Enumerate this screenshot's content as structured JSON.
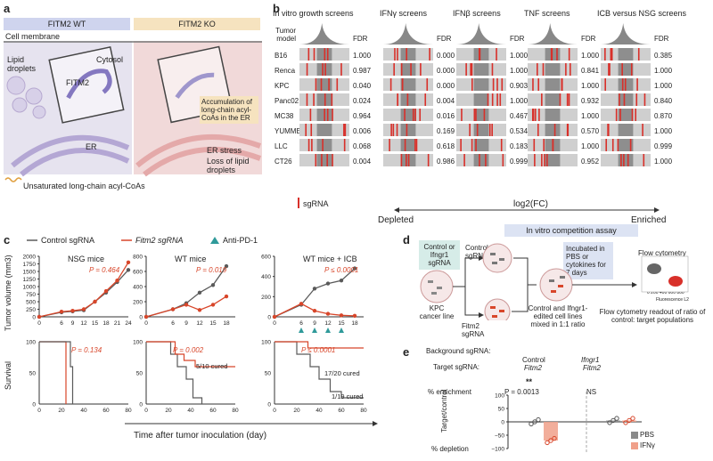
{
  "panel_a": {
    "letter": "a",
    "wt_header": "FITM2 WT",
    "ko_header": "FITM2 KO",
    "cell_membrane": "Cell membrane",
    "lipid_droplets": "Lipid\ndroplets",
    "cytosol": "Cytosol",
    "fitm2": "FITM2",
    "er": "ER",
    "accumulation": "Accumulation of long-chain acyl-CoAs in the ER",
    "er_stress": "ER stress",
    "loss_lipid": "Loss of lipid droplets",
    "legend": "Unsaturated long-chain acyl-CoAs",
    "colors": {
      "wt_bg": "#e6e3ef",
      "ko_bg": "#f1d9d9",
      "wt_header": "#cfd4ee",
      "ko_header": "#f6e3bf"
    }
  },
  "panel_b": {
    "letter": "b",
    "screens": [
      "In vitro growth screens",
      "IFNγ screens",
      "IFNβ screens",
      "TNF screens",
      "ICB versus NSG screens"
    ],
    "tumor_model_label": "Tumor\nmodel",
    "fdr_label": "FDR",
    "models": [
      "B16",
      "Renca",
      "KPC",
      "Panc02",
      "MC38",
      "YUMMER",
      "LLC",
      "CT26"
    ],
    "fdr": [
      [
        "1.000",
        "0.987",
        "0.040",
        "0.024",
        "0.964",
        "0.006",
        "0.068",
        "0.004"
      ],
      [
        "0.000",
        "0.000",
        "0.000",
        "0.004",
        "0.016",
        "0.169",
        "0.618",
        "0.986"
      ],
      [
        "1.000",
        "1.000",
        "0.903",
        "1.000",
        "0.467",
        "0.534",
        "0.183",
        "0.999"
      ],
      [
        "1.000",
        "0.841",
        "1.000",
        "0.932",
        "1.000",
        "0.570",
        "1.000",
        "0.952"
      ],
      [
        "0.385",
        "1.000",
        "1.000",
        "0.840",
        "0.870",
        "1.000",
        "0.999",
        "1.000"
      ]
    ],
    "sgrna_legend": "sgRNA",
    "axis_label": "log2(FC)",
    "depleted": "Depleted",
    "enriched": "Enriched",
    "colors": {
      "sgrna": "#d8302a",
      "strip": "#cfcfcf"
    }
  },
  "panel_c": {
    "letter": "c",
    "legend": {
      "control": "Control sgRNA",
      "fitm2": "Fitm2 sgRNA",
      "anti_pd1": "Anti-PD-1"
    },
    "titles": [
      "NSG mice",
      "WT mice",
      "WT mice + ICB"
    ],
    "growth_ylabel": "Tumor volume (mm3)",
    "survival_ylabel": "Survival",
    "xlabel": "Time after tumor inoculation (day)",
    "p_values": [
      "P = 0.464",
      "P = 0.019",
      "P ≤ 0.0001"
    ],
    "survival_p": [
      "P = 0.134",
      "P = 0.002",
      "P ≤ 0.0001"
    ],
    "cured": [
      "5/10 cured",
      "17/20 cured",
      "1/19 cured"
    ],
    "colors": {
      "control": "#5a5a5a",
      "fitm2": "#d8462a",
      "anti_pd1": "#2f9a9a"
    }
  },
  "panel_d": {
    "letter": "d",
    "title": "In vitro competition assay",
    "control_box": "Control or Ifngr1 sgRNA",
    "control_sgrna": "Control sgRNA",
    "kpc": "KPC cancer line",
    "fitm2_sgrna": "Fitm2 sgRNA",
    "mixed": "Control and Ifngr1-edited cell lines mixed in 1:1 ratio",
    "incubated": "Incubated in PBS or cytokines for 7 days",
    "flow": "Flow cytometry",
    "readout": "Flow cytometry readout of ratio of control: target populations",
    "flow_axes": {
      "y": "Fluorescence L1",
      "x": "Fluorescence L2",
      "ticks": "0 200 400 600 800"
    }
  },
  "panel_e": {
    "letter": "e",
    "background": "Background sgRNA:",
    "target": "Target sgRNA:",
    "group1": [
      "Control",
      "Fitm2"
    ],
    "group2": [
      "Ifngr1",
      "Fitm2"
    ],
    "stars": "**",
    "p": "P = 0.0013",
    "ns": "NS",
    "enrichment": "% enrichment",
    "depletion": "% depletion",
    "ylabel": "Target/control",
    "yticks": [
      "100",
      "50",
      "0",
      "−50",
      "−100"
    ],
    "legend": [
      "PBS",
      "IFNγ"
    ],
    "colors": {
      "pbs": "#8a8a8a",
      "ifng": "#f0a08a"
    }
  },
  "chart_data": [
    {
      "type": "line",
      "title": "NSG mice",
      "x": [
        0,
        6,
        9,
        12,
        15,
        18,
        21,
        24
      ],
      "ylim": [
        0,
        2000
      ],
      "series": [
        {
          "name": "Control sgRNA",
          "values": [
            0,
            150,
            180,
            220,
            500,
            800,
            1150,
            1550
          ]
        },
        {
          "name": "Fitm2 sgRNA",
          "values": [
            0,
            170,
            200,
            250,
            500,
            850,
            1200,
            1800
          ]
        }
      ]
    },
    {
      "type": "line",
      "title": "WT mice",
      "x": [
        0,
        6,
        9,
        12,
        15,
        18
      ],
      "ylim": [
        0,
        800
      ],
      "series": [
        {
          "name": "Control sgRNA",
          "values": [
            0,
            100,
            180,
            320,
            420,
            670
          ]
        },
        {
          "name": "Fitm2 sgRNA",
          "values": [
            0,
            100,
            160,
            90,
            160,
            270
          ]
        }
      ]
    },
    {
      "type": "line",
      "title": "WT mice + ICB",
      "x": [
        0,
        6,
        9,
        12,
        15,
        18
      ],
      "ylim": [
        0,
        600
      ],
      "series": [
        {
          "name": "Control sgRNA",
          "values": [
            0,
            120,
            280,
            330,
            360,
            480
          ]
        },
        {
          "name": "Fitm2 sgRNA",
          "values": [
            0,
            130,
            60,
            30,
            15,
            10
          ]
        }
      ]
    },
    {
      "type": "bar",
      "categories": [
        "Control/Fitm2",
        "Ifngr1/Fitm2"
      ],
      "ylim": [
        -100,
        100
      ],
      "series": [
        {
          "name": "PBS",
          "values": [
            0,
            5
          ]
        },
        {
          "name": "IFNγ",
          "values": [
            -70,
            5
          ]
        }
      ]
    }
  ]
}
